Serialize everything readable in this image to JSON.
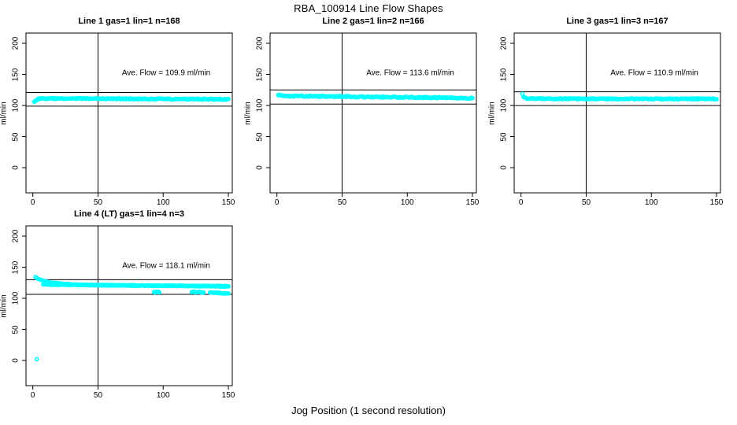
{
  "title": "RBA_100914  Line Flow Shapes",
  "xlabel": "Jog Position (1 second resolution)",
  "ylabel": "ml/min",
  "colors": {
    "point": "#00ffff",
    "axis": "#000000",
    "background": "#ffffff"
  },
  "chart_data": {
    "type": "scatter",
    "layout": {
      "rows": 2,
      "cols": 3,
      "x_ticks": [
        0,
        50,
        100,
        150
      ],
      "y_ticks": [
        0,
        50,
        100,
        150,
        200
      ],
      "xlim": [
        0,
        153
      ],
      "ylim": [
        0,
        200
      ],
      "grid": false,
      "legend": "none"
    },
    "panels": [
      {
        "row": 0,
        "col": 0,
        "title": "Line 1 gas=1 lin=1 n=168",
        "n": 168,
        "ave_flow": 109.9,
        "ave_flow_text": "Ave. Flow =  109.9  ml/min",
        "units": "ml/min",
        "vline_x": 50,
        "ref_line_upper": 120.9,
        "ref_line_lower": 98.9,
        "series": [
          {
            "name": "flow-trace",
            "n_points": 168,
            "x_start": 1,
            "x_end": 150,
            "jitter": 0.8,
            "seed": 11,
            "profile": [
              [
                1,
                105.5
              ],
              [
                2,
                107.5
              ],
              [
                4,
                110.5
              ],
              [
                8,
                111.2
              ],
              [
                40,
                111.0
              ],
              [
                80,
                110.6
              ],
              [
                120,
                110.3
              ],
              [
                150,
                110.0
              ]
            ]
          }
        ],
        "outliers": []
      },
      {
        "row": 0,
        "col": 1,
        "title": "Line 2 gas=1 lin=2 n=166",
        "n": 166,
        "ave_flow": 113.6,
        "ave_flow_text": "Ave. Flow =  113.6  ml/min",
        "units": "ml/min",
        "vline_x": 50,
        "ref_line_upper": 125.0,
        "ref_line_lower": 102.2,
        "series": [
          {
            "name": "flow-trace",
            "n_points": 166,
            "x_start": 1,
            "x_end": 150,
            "jitter": 0.9,
            "seed": 22,
            "profile": [
              [
                1,
                117.0
              ],
              [
                3,
                115.8
              ],
              [
                10,
                115.2
              ],
              [
                40,
                114.5
              ],
              [
                80,
                113.6
              ],
              [
                120,
                112.6
              ],
              [
                150,
                111.6
              ]
            ]
          }
        ],
        "outliers": []
      },
      {
        "row": 0,
        "col": 2,
        "title": "Line 3 gas=1 lin=3 n=167",
        "n": 167,
        "ave_flow": 110.9,
        "ave_flow_text": "Ave. Flow =  110.9  ml/min",
        "units": "ml/min",
        "vline_x": 50,
        "ref_line_upper": 122.0,
        "ref_line_lower": 99.8,
        "series": [
          {
            "name": "flow-trace",
            "n_points": 167,
            "x_start": 1,
            "x_end": 150,
            "jitter": 0.8,
            "seed": 33,
            "profile": [
              [
                1,
                118.0
              ],
              [
                2,
                114.0
              ],
              [
                5,
                111.2
              ],
              [
                30,
                110.8
              ],
              [
                80,
                110.6
              ],
              [
                150,
                110.6
              ]
            ]
          }
        ],
        "outliers": []
      },
      {
        "row": 1,
        "col": 0,
        "title": "Line 4 (LT) gas=1 lin=4 n=3",
        "n": 3,
        "ave_flow": 118.1,
        "ave_flow_text": "Ave. Flow =  118.1  ml/min",
        "units": "ml/min",
        "vline_x": 50,
        "ref_line_upper": 129.9,
        "ref_line_lower": 106.3,
        "series": [
          {
            "name": "jog-1-decay",
            "n_points": 150,
            "x_start": 2,
            "x_end": 150,
            "jitter": 0.5,
            "seed": 41,
            "profile": [
              [
                2,
                134.0
              ],
              [
                5,
                130.5
              ],
              [
                10,
                127.0
              ],
              [
                16,
                124.8
              ],
              [
                24,
                123.0
              ],
              [
                35,
                121.8
              ],
              [
                50,
                121.0
              ],
              [
                75,
                120.5
              ],
              [
                105,
                120.2
              ],
              [
                150,
                119.6
              ]
            ]
          },
          {
            "name": "jog-2-plateau",
            "n_points": 140,
            "x_start": 8,
            "x_end": 150,
            "jitter": 0.5,
            "seed": 42,
            "profile": [
              [
                8,
                122.2
              ],
              [
                50,
                121.2
              ],
              [
                100,
                120.3
              ],
              [
                135,
                119.6
              ],
              [
                150,
                118.8
              ]
            ]
          },
          {
            "name": "jog-3-dip-a",
            "n_points": 8,
            "x_start": 93,
            "x_end": 97,
            "jitter": 0.6,
            "seed": 43,
            "profile": [
              [
                93,
                110.0
              ],
              [
                97,
                110.0
              ]
            ]
          },
          {
            "name": "jog-3-dip-b",
            "n_points": 12,
            "x_start": 122,
            "x_end": 131,
            "jitter": 0.8,
            "seed": 44,
            "profile": [
              [
                122,
                110.2
              ],
              [
                131,
                109.8
              ]
            ]
          },
          {
            "name": "jog-3-tail",
            "n_points": 22,
            "x_start": 136,
            "x_end": 150,
            "jitter": 0.5,
            "seed": 45,
            "profile": [
              [
                136,
                109.6
              ],
              [
                150,
                107.6
              ]
            ]
          }
        ],
        "outliers": [
          [
            3,
            2
          ]
        ]
      }
    ]
  }
}
